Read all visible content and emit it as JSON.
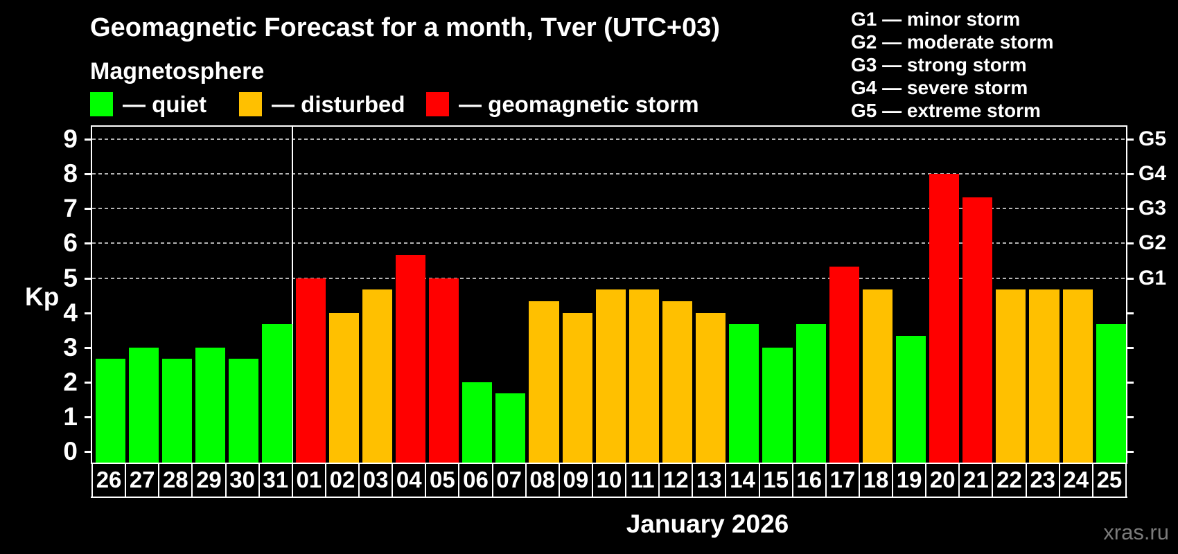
{
  "header": {
    "title": "Geomagnetic Forecast for a month, Tver (UTC+03)",
    "subtitle": "Magnetosphere"
  },
  "legend": {
    "items": [
      {
        "name": "quiet",
        "label": "— quiet",
        "color": "#00ff00"
      },
      {
        "name": "disturbed",
        "label": "— disturbed",
        "color": "#ffc000"
      },
      {
        "name": "geomagnetic-storm",
        "label": "— geomagnetic storm",
        "color": "#ff0000"
      }
    ]
  },
  "storm_scale_legend": {
    "lines": [
      "G1 — minor storm",
      "G2 — moderate storm",
      "G3 — strong storm",
      "G4 — severe storm",
      "G5 — extreme storm"
    ]
  },
  "axes": {
    "kp_axis_label": "Kp",
    "kp_ticks": [
      0,
      1,
      2,
      3,
      4,
      5,
      6,
      7,
      8,
      9
    ],
    "g_levels": [
      {
        "kp": 5,
        "label": "G1"
      },
      {
        "kp": 6,
        "label": "G2"
      },
      {
        "kp": 7,
        "label": "G3"
      },
      {
        "kp": 8,
        "label": "G4"
      },
      {
        "kp": 9,
        "label": "G5"
      }
    ]
  },
  "footer": {
    "month_label": "January 2026",
    "watermark": "xras.ru"
  },
  "chart_data": {
    "type": "bar",
    "title": "Geomagnetic Forecast for a month, Tver (UTC+03)",
    "ylabel": "Kp",
    "ylim": [
      0,
      9.4
    ],
    "grid": "horizontal dashed lines at Kp 5,6,7,8,9 (G1–G5)",
    "legend_position": "top-left",
    "categories": [
      "26",
      "27",
      "28",
      "29",
      "30",
      "31",
      "01",
      "02",
      "03",
      "04",
      "05",
      "06",
      "07",
      "08",
      "09",
      "10",
      "11",
      "12",
      "13",
      "14",
      "15",
      "16",
      "17",
      "18",
      "19",
      "20",
      "21",
      "22",
      "23",
      "24",
      "25"
    ],
    "values": [
      2.67,
      3.0,
      2.67,
      3.0,
      2.67,
      3.67,
      5.0,
      4.0,
      4.67,
      5.67,
      5.0,
      2.0,
      1.67,
      4.33,
      4.0,
      4.67,
      4.67,
      4.33,
      4.0,
      3.67,
      3.0,
      3.67,
      5.33,
      4.67,
      3.33,
      8.0,
      7.33,
      4.67,
      4.67,
      4.67,
      3.67
    ],
    "statuses": [
      "quiet",
      "quiet",
      "quiet",
      "quiet",
      "quiet",
      "quiet",
      "storm",
      "disturbed",
      "disturbed",
      "storm",
      "storm",
      "quiet",
      "quiet",
      "disturbed",
      "disturbed",
      "disturbed",
      "disturbed",
      "disturbed",
      "disturbed",
      "quiet",
      "quiet",
      "quiet",
      "storm",
      "disturbed",
      "quiet",
      "storm",
      "storm",
      "disturbed",
      "disturbed",
      "disturbed",
      "quiet"
    ],
    "palette": {
      "quiet": "#00ff00",
      "disturbed": "#ffc000",
      "storm": "#ff0000"
    },
    "gridline_color": "#b4b4b4",
    "frame_color": "#ffffff",
    "month_separator_after_category": "31"
  }
}
